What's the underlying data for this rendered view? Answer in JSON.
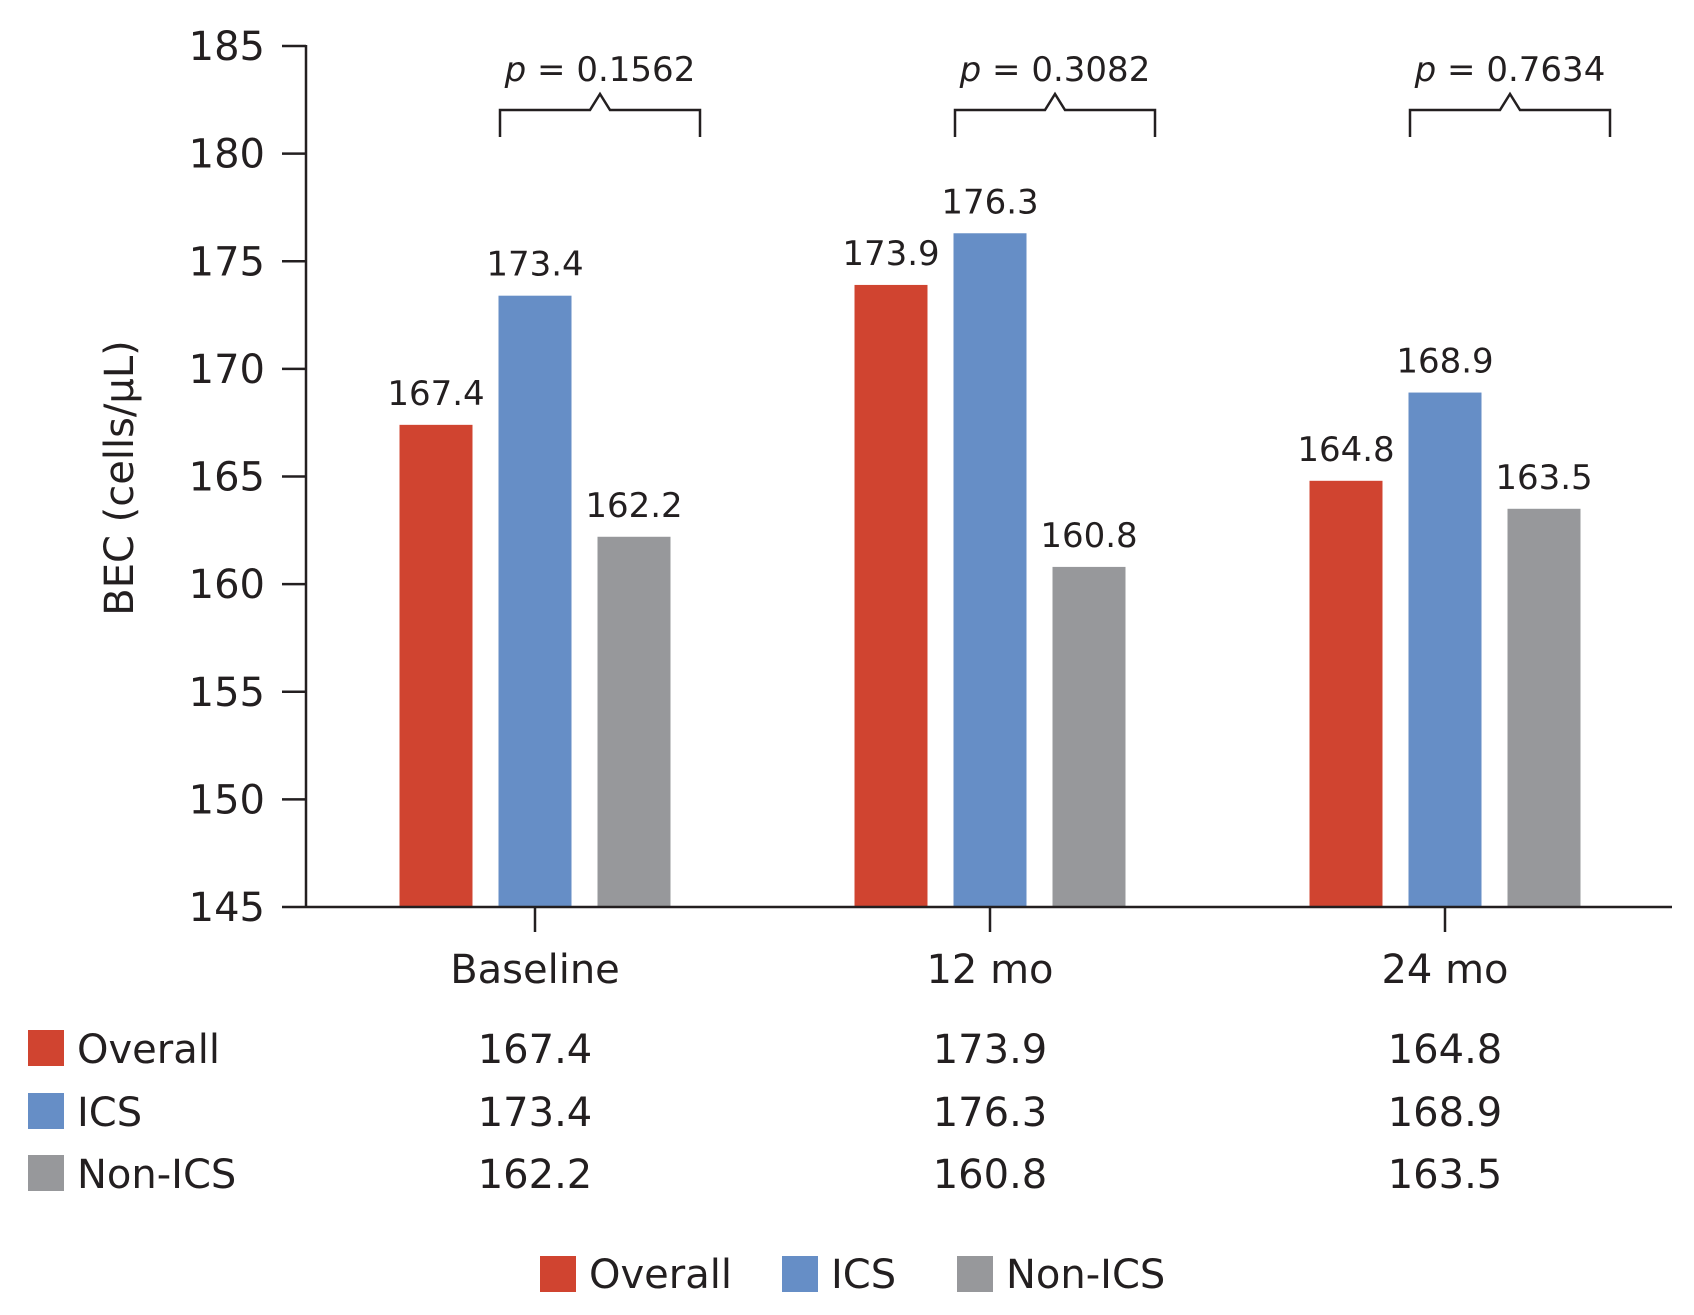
{
  "chart_data": {
    "type": "bar",
    "title": "",
    "xlabel": "",
    "ylabel": "BEC (cells/μL)",
    "ylim": [
      145,
      185
    ],
    "yticks": [
      "145",
      "150",
      "155",
      "160",
      "165",
      "170",
      "175",
      "180",
      "185"
    ],
    "categories": [
      "Baseline",
      "12 mo",
      "24 mo"
    ],
    "series": [
      {
        "name": "Overall",
        "color": "#d04430",
        "values": [
          167.4,
          173.9,
          164.8
        ],
        "labels": [
          "167.4",
          "173.9",
          "164.8"
        ]
      },
      {
        "name": "ICS",
        "color": "#668ec6",
        "values": [
          173.4,
          176.3,
          168.9
        ],
        "labels": [
          "173.4",
          "176.3",
          "168.9"
        ]
      },
      {
        "name": "Non-ICS",
        "color": "#97989b",
        "values": [
          162.2,
          160.8,
          163.5
        ],
        "labels": [
          "162.2",
          "160.8",
          "163.5"
        ]
      }
    ],
    "p_values": [
      {
        "category": "Baseline",
        "p_symbol": "p",
        "text": " = 0.1562"
      },
      {
        "category": "12 mo",
        "p_symbol": "p",
        "text": " = 0.3082"
      },
      {
        "category": "24 mo",
        "p_symbol": "p",
        "text": " = 0.7634"
      }
    ],
    "data_table": {
      "rows": [
        {
          "name": "Overall",
          "color": "#d04430",
          "cells": [
            "167.4",
            "173.9",
            "164.8"
          ]
        },
        {
          "name": "ICS",
          "color": "#668ec6",
          "cells": [
            "173.4",
            "176.3",
            "168.9"
          ]
        },
        {
          "name": "Non-ICS",
          "color": "#97989b",
          "cells": [
            "162.2",
            "160.8",
            "163.5"
          ]
        }
      ]
    },
    "legend": {
      "position": "bottom-center",
      "entries": [
        {
          "name": "Overall",
          "color": "#d04430"
        },
        {
          "name": "ICS",
          "color": "#668ec6"
        },
        {
          "name": "Non-ICS",
          "color": "#97989b"
        }
      ]
    }
  }
}
